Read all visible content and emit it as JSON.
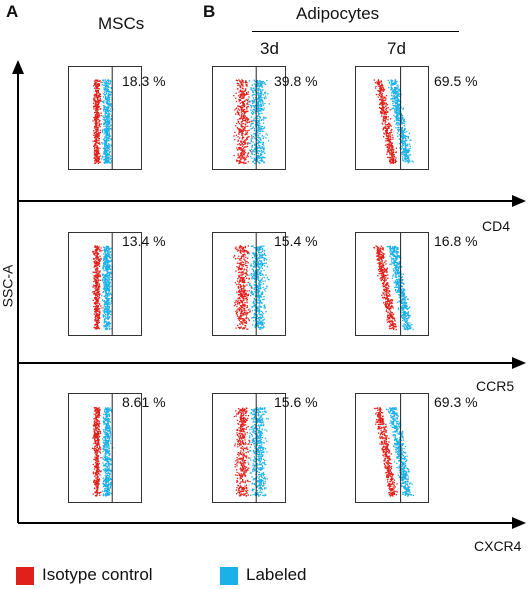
{
  "labels": {
    "panel_a": "A",
    "panel_b": "B",
    "mscs": "MSCs",
    "adipocytes": "Adipocytes",
    "day3": "3d",
    "day7": "7d",
    "y_axis": "SSC-A",
    "markers": [
      "CD4",
      "CCR5",
      "CXCR4"
    ]
  },
  "legend": [
    {
      "label": "Isotype control",
      "color": "#e0201b"
    },
    {
      "label": "Labeled",
      "color": "#1ab0e8"
    }
  ],
  "colors": {
    "isotype": "#e0201b",
    "labeled": "#1ab0e8",
    "axis": "#000000"
  },
  "percentages": [
    [
      "18.3 %",
      "39.8 %",
      "69.5 %"
    ],
    [
      "13.4 %",
      "15.4 %",
      "16.8 %"
    ],
    [
      "8.61 %",
      "15.6 %",
      "69.3 %"
    ]
  ]
}
